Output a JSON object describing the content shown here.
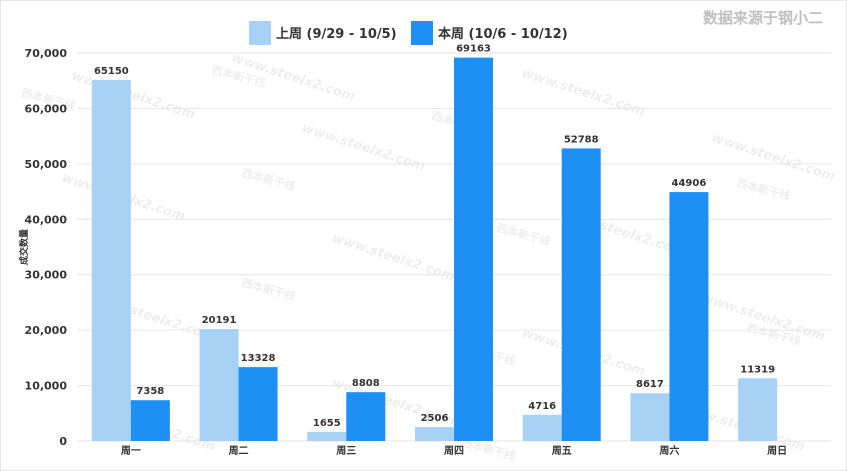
{
  "source_note": "数据来源于钢小二",
  "watermark_text": "www.steelx2.com",
  "watermark_logo_text": "西本新干线",
  "colors": {
    "last_week": "#a7d1f5",
    "this_week": "#1e8ff5",
    "grid": "#e6e6e6",
    "axis_text": "#333333",
    "source_text": "#bfbfbf"
  },
  "chart_data": {
    "type": "bar",
    "title": "",
    "xlabel": "",
    "ylabel": "成交数量",
    "ylim": [
      0,
      70000
    ],
    "yticks": [
      0,
      10000,
      20000,
      30000,
      40000,
      50000,
      60000,
      70000
    ],
    "ytick_labels": [
      "0",
      "10,000",
      "20,000",
      "30,000",
      "40,000",
      "50,000",
      "60,000",
      "70,000"
    ],
    "grid": true,
    "legend_position": "top-center",
    "categories": [
      "周一",
      "周二",
      "周三",
      "周四",
      "周五",
      "周六",
      "周日"
    ],
    "series": [
      {
        "name": "上周 (9/29 - 10/5)",
        "color": "#a7d1f5",
        "values": [
          65150,
          20191,
          1655,
          2506,
          4716,
          8617,
          11319
        ]
      },
      {
        "name": "本周 (10/6 - 10/12)",
        "color": "#1e8ff5",
        "values": [
          7358,
          13328,
          8808,
          69163,
          52788,
          44906,
          null
        ]
      }
    ]
  }
}
